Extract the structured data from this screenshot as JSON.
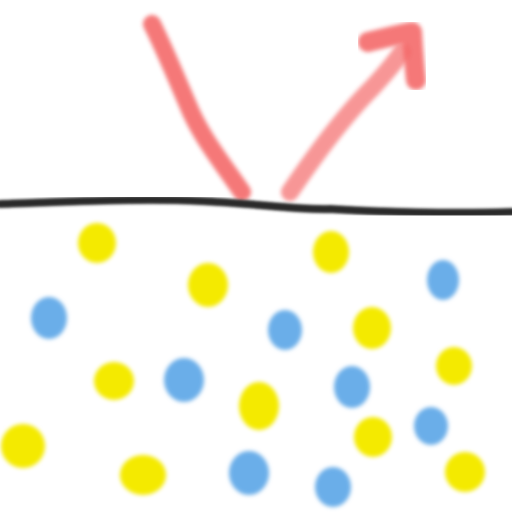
{
  "scene": {
    "background_color": "#ffffff",
    "surface": {
      "name": "surface-line",
      "color": "#2a2a2a"
    },
    "ray": {
      "color": "#f46b6b",
      "incident_name": "incident-ray",
      "reflected_name": "reflected-ray"
    },
    "particle_colors": {
      "yellow": "#f4ea00",
      "blue": "#6aaee9"
    }
  }
}
